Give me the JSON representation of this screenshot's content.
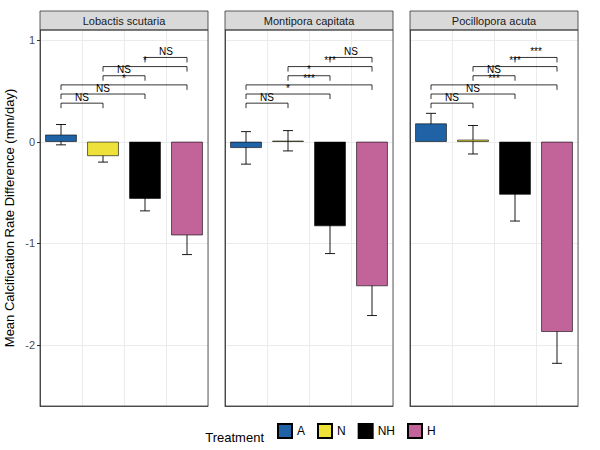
{
  "chart_data": {
    "type": "bar",
    "ylabel": "Mean Calcification Rate Difference (mm/day)",
    "categories": [
      "A",
      "N",
      "NH",
      "H"
    ],
    "colors": [
      "#1f63a6",
      "#eee13a",
      "#000000",
      "#c2649a"
    ],
    "legend": "bottom",
    "legend_title": "Treatment",
    "ylim": [
      -2.6,
      1.1
    ],
    "yticks": [
      -2,
      -1,
      0,
      1
    ],
    "grid": true,
    "tick_labels": "y",
    "panels": [
      {
        "title": "Lobactis scutaria",
        "values": [
          0.07,
          -0.14,
          -0.56,
          -0.92
        ],
        "errors": [
          0.1,
          0.06,
          0.12,
          0.19
        ],
        "comparisons": [
          {
            "from": "A",
            "to": "N",
            "y": 0.38,
            "label": "NS"
          },
          {
            "from": "A",
            "to": "NH",
            "y": 0.47,
            "label": "NS"
          },
          {
            "from": "A",
            "to": "H",
            "y": 0.56,
            "label": "*"
          },
          {
            "from": "N",
            "to": "NH",
            "y": 0.65,
            "label": "NS"
          },
          {
            "from": "N",
            "to": "H",
            "y": 0.74,
            "label": "*"
          },
          {
            "from": "NH",
            "to": "H",
            "y": 0.83,
            "label": "NS"
          }
        ]
      },
      {
        "title": "Montipora capitata",
        "values": [
          -0.06,
          0.01,
          -0.83,
          -1.42
        ],
        "errors": [
          0.16,
          0.1,
          0.27,
          0.29
        ],
        "comparisons": [
          {
            "from": "A",
            "to": "N",
            "y": 0.38,
            "label": "NS"
          },
          {
            "from": "A",
            "to": "NH",
            "y": 0.47,
            "label": "*"
          },
          {
            "from": "A",
            "to": "H",
            "y": 0.56,
            "label": "***"
          },
          {
            "from": "N",
            "to": "NH",
            "y": 0.65,
            "label": "*"
          },
          {
            "from": "N",
            "to": "H",
            "y": 0.74,
            "label": "***"
          },
          {
            "from": "NH",
            "to": "H",
            "y": 0.83,
            "label": "NS"
          }
        ]
      },
      {
        "title": "Pocillopora acuta",
        "values": [
          0.18,
          0.02,
          -0.52,
          -1.87
        ],
        "errors": [
          0.1,
          0.14,
          0.26,
          0.31
        ],
        "comparisons": [
          {
            "from": "A",
            "to": "N",
            "y": 0.38,
            "label": "NS"
          },
          {
            "from": "A",
            "to": "NH",
            "y": 0.47,
            "label": "NS"
          },
          {
            "from": "A",
            "to": "H",
            "y": 0.56,
            "label": "***"
          },
          {
            "from": "N",
            "to": "NH",
            "y": 0.65,
            "label": "NS"
          },
          {
            "from": "N",
            "to": "H",
            "y": 0.74,
            "label": "***"
          },
          {
            "from": "NH",
            "to": "H",
            "y": 0.83,
            "label": "***"
          }
        ]
      }
    ]
  }
}
